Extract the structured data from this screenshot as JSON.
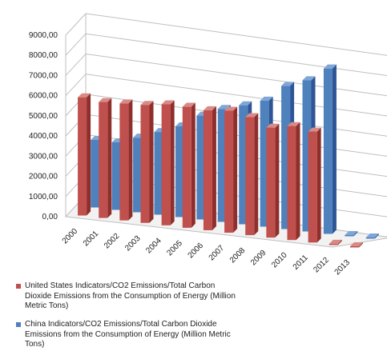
{
  "chart_data": {
    "type": "bar",
    "categories": [
      "2000",
      "2001",
      "2002",
      "2003",
      "2004",
      "2005",
      "2006",
      "2007",
      "2008",
      "2009",
      "2010",
      "2011",
      "2012",
      "2013"
    ],
    "y_ticks": [
      "0,00",
      "1000,00",
      "2000,00",
      "3000,00",
      "4000,00",
      "5000,00",
      "6000,00",
      "7000,00",
      "8000,00",
      "9000,00"
    ],
    "ylim": [
      0,
      9000
    ],
    "grid": true,
    "legend_position": "bottom",
    "series": [
      {
        "name": "United States Indicators/CO2 Emissions/Total Carbon Dioxide Emissions from the Consumption of Energy (Million Metric Tons)",
        "color": "#c0504d",
        "values": [
          5860,
          5750,
          5800,
          5850,
          6000,
          6000,
          5950,
          6050,
          5850,
          5450,
          5650,
          5500,
          0,
          0
        ]
      },
      {
        "name": "China Indicators/CO2 Emissions/Total Carbon Dioxide Emissions from the Consumption of Energy (Million Metric Tons)",
        "color": "#4f81bd",
        "values": [
          3350,
          3350,
          3700,
          4100,
          4500,
          5150,
          5600,
          5900,
          6250,
          7100,
          7500,
          8200,
          0,
          0
        ]
      }
    ]
  }
}
